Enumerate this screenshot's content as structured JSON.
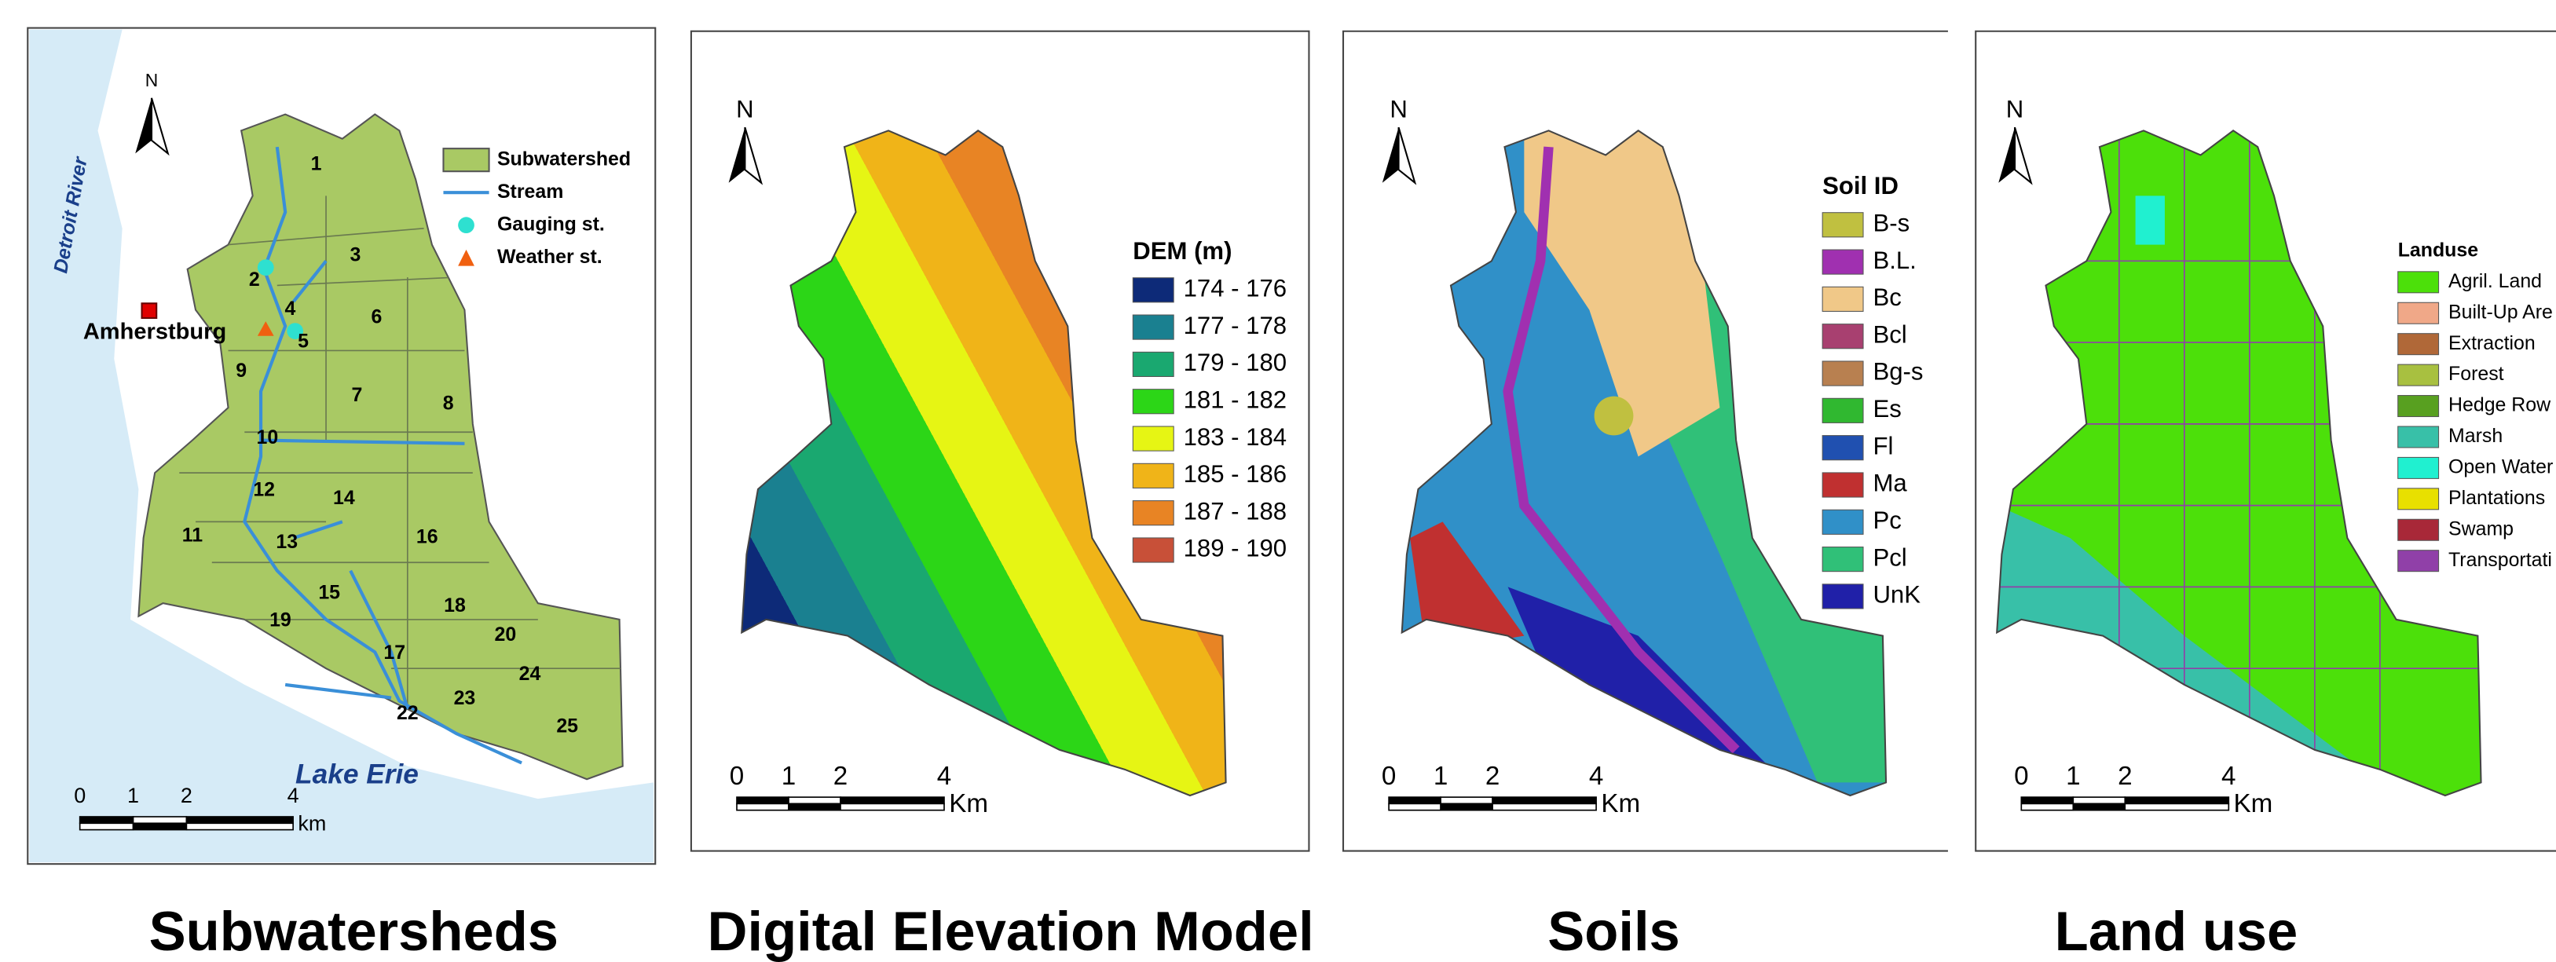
{
  "panels": [
    {
      "caption": "Subwatersheds",
      "north": "N",
      "river": "Detroit River",
      "town": "Amherstburg",
      "lake": "Lake Erie",
      "legend": [
        {
          "label": "Subwatershed",
          "color": "#a9c964"
        },
        {
          "label": "Stream",
          "color": "#3a8fd8"
        },
        {
          "label": "Gauging st.",
          "color": "#2ee0d0"
        },
        {
          "label": "Weather st.",
          "color": "#f06010"
        }
      ],
      "subwatersheds": [
        "1",
        "2",
        "3",
        "4",
        "5",
        "6",
        "7",
        "8",
        "9",
        "10",
        "11",
        "12",
        "13",
        "14",
        "15",
        "16",
        "17",
        "18",
        "19",
        "20",
        "22",
        "23",
        "24",
        "25"
      ],
      "scale": {
        "ticks": [
          0,
          1,
          2,
          4
        ],
        "unit": "km"
      }
    },
    {
      "caption": "Digital Elevation Model",
      "north": "N",
      "legend_title": "DEM (m)",
      "legend": [
        {
          "label": "174 - 176",
          "color": "#0d2a78"
        },
        {
          "label": "177 - 178",
          "color": "#1a8090"
        },
        {
          "label": "179 - 180",
          "color": "#1aa870"
        },
        {
          "label": "181 - 182",
          "color": "#2cd617"
        },
        {
          "label": "183 - 184",
          "color": "#e6f514"
        },
        {
          "label": "185 - 186",
          "color": "#f0b418"
        },
        {
          "label": "187 - 188",
          "color": "#e88424"
        },
        {
          "label": "189 - 190",
          "color": "#c85038"
        }
      ],
      "scale": {
        "ticks": [
          0,
          1,
          2,
          4
        ],
        "unit": "Km"
      }
    },
    {
      "caption": "Soils",
      "north": "N",
      "legend_title": "Soil ID",
      "legend": [
        {
          "label": "B-s",
          "color": "#c0c040"
        },
        {
          "label": "B.L.",
          "color": "#a030b0"
        },
        {
          "label": "Bc",
          "color": "#f0c888"
        },
        {
          "label": "Bcl",
          "color": "#a84070"
        },
        {
          "label": "Bg-s",
          "color": "#b88050"
        },
        {
          "label": "Es",
          "color": "#30b830"
        },
        {
          "label": "Fl",
          "color": "#2050b0"
        },
        {
          "label": "Ma",
          "color": "#c03030"
        },
        {
          "label": "Pc",
          "color": "#3090c8"
        },
        {
          "label": "Pcl",
          "color": "#30c078"
        },
        {
          "label": "UnK",
          "color": "#2020a8"
        }
      ],
      "scale": {
        "ticks": [
          0,
          1,
          2,
          4
        ],
        "unit": "Km"
      }
    },
    {
      "caption": "Land use",
      "north": "N",
      "legend_title": "Landuse",
      "legend": [
        {
          "label": "Agril. Land",
          "color": "#4ce00a"
        },
        {
          "label": "Built-Up Are",
          "color": "#f0a888"
        },
        {
          "label": "Extraction",
          "color": "#b06838"
        },
        {
          "label": "Forest",
          "color": "#a8c040"
        },
        {
          "label": "Hedge Row",
          "color": "#58a020"
        },
        {
          "label": "Marsh",
          "color": "#38c0a8"
        },
        {
          "label": "Open Water",
          "color": "#20f0d0"
        },
        {
          "label": "Plantations",
          "color": "#e8e000"
        },
        {
          "label": "Swamp",
          "color": "#a82838"
        },
        {
          "label": "Transportati",
          "color": "#9040a8"
        }
      ],
      "scale": {
        "ticks": [
          0,
          1,
          2,
          4
        ],
        "unit": "Km"
      }
    }
  ]
}
